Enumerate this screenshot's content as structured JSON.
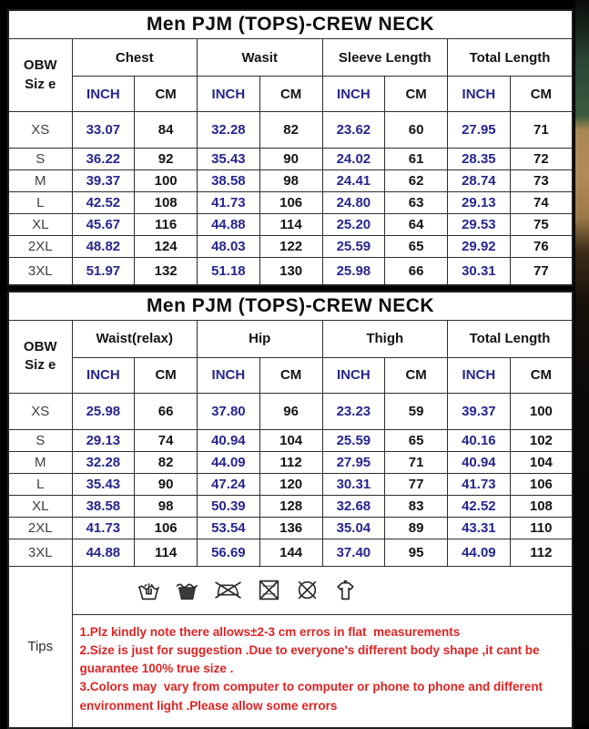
{
  "colors": {
    "page_bg": "#000000",
    "sheet_bg": "#ffffff",
    "inch_text": "#26268f",
    "cm_text": "#141414",
    "tips_text": "#df2323",
    "table_border": "#2e2e2e"
  },
  "labels": {
    "size_line1": "OBW",
    "size_line2": "Siz e",
    "inch": "INCH",
    "cm": "CM"
  },
  "table1": {
    "title": "Men PJM (TOPS)-CREW NECK",
    "groups": [
      "Chest",
      "Wasit",
      "Sleeve Length",
      "Total Length"
    ],
    "rows": [
      {
        "size": "XS",
        "values": [
          "33.07",
          "84",
          "32.28",
          "82",
          "23.62",
          "60",
          "27.95",
          "71"
        ]
      },
      {
        "size": "S",
        "values": [
          "36.22",
          "92",
          "35.43",
          "90",
          "24.02",
          "61",
          "28.35",
          "72"
        ]
      },
      {
        "size": "M",
        "values": [
          "39.37",
          "100",
          "38.58",
          "98",
          "24.41",
          "62",
          "28.74",
          "73"
        ]
      },
      {
        "size": "L",
        "values": [
          "42.52",
          "108",
          "41.73",
          "106",
          "24.80",
          "63",
          "29.13",
          "74"
        ]
      },
      {
        "size": "XL",
        "values": [
          "45.67",
          "116",
          "44.88",
          "114",
          "25.20",
          "64",
          "29.53",
          "75"
        ]
      },
      {
        "size": "2XL",
        "values": [
          "48.82",
          "124",
          "48.03",
          "122",
          "25.59",
          "65",
          "29.92",
          "76"
        ]
      },
      {
        "size": "3XL",
        "values": [
          "51.97",
          "132",
          "51.18",
          "130",
          "25.98",
          "66",
          "30.31",
          "77"
        ]
      }
    ]
  },
  "table2": {
    "title": "Men PJM (TOPS)-CREW NECK",
    "groups": [
      "Waist(relax)",
      "Hip",
      "Thigh",
      "Total Length"
    ],
    "rows": [
      {
        "size": "XS",
        "values": [
          "25.98",
          "66",
          "37.80",
          "96",
          "23.23",
          "59",
          "39.37",
          "100"
        ]
      },
      {
        "size": "S",
        "values": [
          "29.13",
          "74",
          "40.94",
          "104",
          "25.59",
          "65",
          "40.16",
          "102"
        ]
      },
      {
        "size": "M",
        "values": [
          "32.28",
          "82",
          "44.09",
          "112",
          "27.95",
          "71",
          "40.94",
          "104"
        ]
      },
      {
        "size": "L",
        "values": [
          "35.43",
          "90",
          "47.24",
          "120",
          "30.31",
          "77",
          "41.73",
          "106"
        ]
      },
      {
        "size": "XL",
        "values": [
          "38.58",
          "98",
          "50.39",
          "128",
          "32.68",
          "83",
          "42.52",
          "108"
        ]
      },
      {
        "size": "2XL",
        "values": [
          "41.73",
          "106",
          "53.54",
          "136",
          "35.04",
          "89",
          "43.31",
          "110"
        ]
      },
      {
        "size": "3XL",
        "values": [
          "44.88",
          "114",
          "56.69",
          "144",
          "37.40",
          "95",
          "44.09",
          "112"
        ]
      }
    ]
  },
  "care_icons": [
    "hand-wash-icon",
    "wash-tub-icon",
    "do-not-iron-icon",
    "do-not-tumble-dry-icon",
    "do-not-dry-clean-icon",
    "drip-dry-shirt-icon"
  ],
  "tips": {
    "label": "Tips",
    "lines": [
      "1.Plz kindly note there allows±2-3 cm erros in flat  measurements",
      "2.Size is just for suggestion .Due to everyone's different body shape ,it cant be guarantee 100% true size .",
      "3.Colors may  vary from computer to computer or phone to phone and different environment light .Please allow some errors"
    ]
  }
}
